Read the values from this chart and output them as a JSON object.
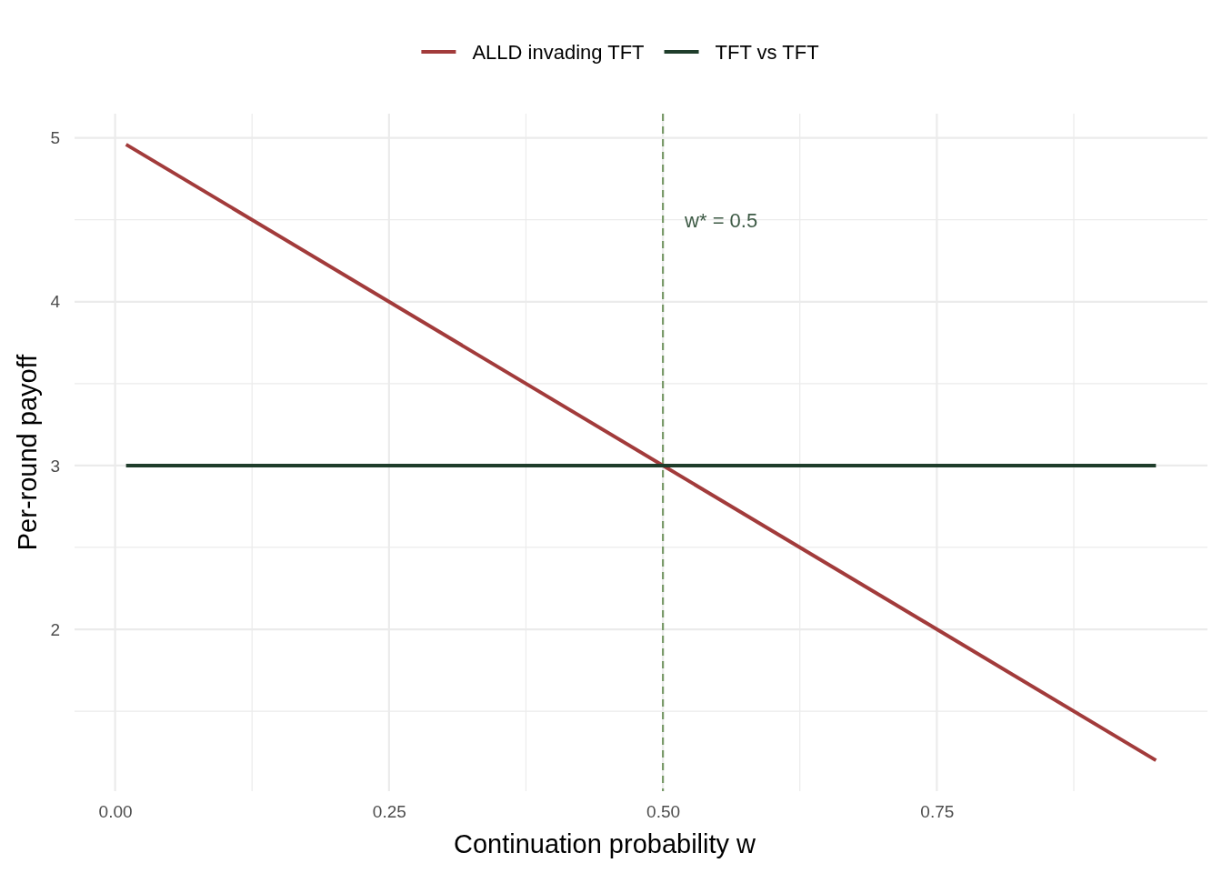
{
  "chart_data": {
    "type": "line",
    "xlabel": "Continuation probability w",
    "ylabel": "Per-round payoff",
    "series": [
      {
        "name": "ALLD invading TFT",
        "color": "#a23b3b",
        "values": [
          4.96,
          1.2
        ]
      },
      {
        "name": "TFT vs TFT",
        "color": "#1f3d2b",
        "values": [
          3,
          3
        ]
      }
    ],
    "x": [
      0.01,
      0.95
    ],
    "xlim": [
      -0.037,
      0.997
    ],
    "ylim": [
      1.012,
      5.148
    ],
    "xticks": [
      {
        "value": 0,
        "label": "0.00"
      },
      {
        "value": 0.125,
        "label": null
      },
      {
        "value": 0.25,
        "label": "0.25"
      },
      {
        "value": 0.375,
        "label": null
      },
      {
        "value": 0.5,
        "label": "0.50"
      },
      {
        "value": 0.625,
        "label": null
      },
      {
        "value": 0.75,
        "label": "0.75"
      },
      {
        "value": 0.875,
        "label": null
      }
    ],
    "yticks": [
      {
        "value": 1.5,
        "label": null
      },
      2,
      {
        "value": 2.5,
        "label": null
      },
      3,
      {
        "value": 3.5,
        "label": null
      },
      4,
      {
        "value": 4.5,
        "label": null
      },
      5
    ],
    "ref_lines": [
      {
        "axis": "x",
        "value": 0.5,
        "label": "w* = 0.5",
        "color": "#7a9a6a",
        "line_style": "dashed"
      }
    ],
    "grid": true,
    "legend": "top",
    "marker": "none",
    "line_style": "solid"
  }
}
